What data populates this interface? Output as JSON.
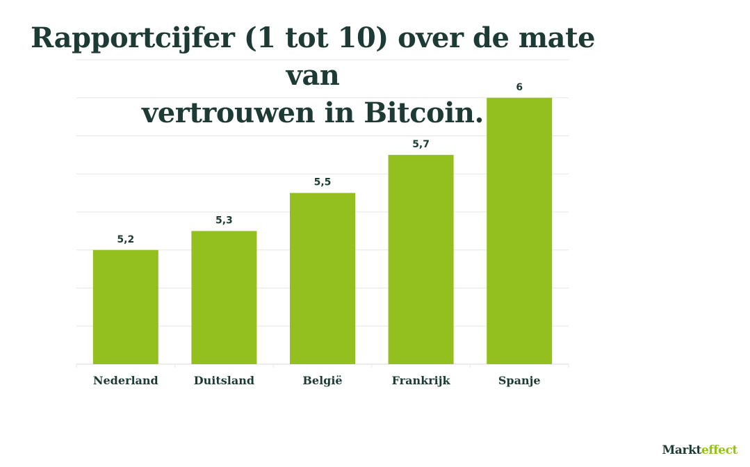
{
  "title_lines": [
    "Rapportcijfer (1 tot 10) over de mate van",
    "vertrouwen in Bitcoin."
  ],
  "brand": {
    "part1": "Markt",
    "part2": "effect"
  },
  "colors": {
    "bar": "#93c01f",
    "title": "#1d3b34",
    "label": "#1d3b34",
    "grid": "#e6e6e6"
  },
  "chart_data": {
    "type": "bar",
    "title": "Rapportcijfer (1 tot 10) over de mate van vertrouwen in Bitcoin.",
    "categories": [
      "Nederland",
      "Duitsland",
      "België",
      "Frankrijk",
      "Spanje"
    ],
    "values": [
      5.2,
      5.3,
      5.5,
      5.7,
      6
    ],
    "value_labels": [
      "5,2",
      "5,3",
      "5,5",
      "5,7",
      "6"
    ],
    "ylim": [
      4.6,
      6.2
    ],
    "grid": true,
    "xlabel": "",
    "ylabel": ""
  }
}
